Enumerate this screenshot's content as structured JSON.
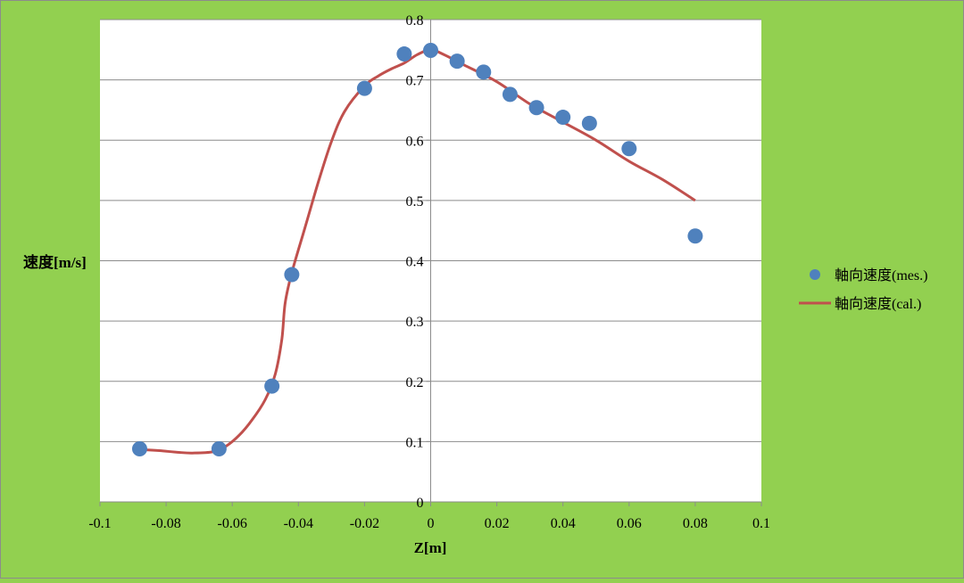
{
  "chart_data": {
    "type": "scatter",
    "title": "",
    "xlabel": "Z[m]",
    "ylabel": "速度[m/s]",
    "xlim": [
      -0.1,
      0.1
    ],
    "ylim": [
      0,
      0.8
    ],
    "x_ticks": [
      "-0.1",
      "-0.08",
      "-0.06",
      "-0.04",
      "-0.02",
      "0",
      "0.02",
      "0.04",
      "0.06",
      "0.08",
      "0.1"
    ],
    "y_ticks": [
      "0",
      "0.1",
      "0.2",
      "0.3",
      "0.4",
      "0.5",
      "0.6",
      "0.7",
      "0.8"
    ],
    "grid": "horizontal",
    "legend_position": "right",
    "series": [
      {
        "name": "軸向速度(mes.)",
        "type": "scatter",
        "color": "#4f81bd",
        "points": [
          [
            -0.088,
            0.088
          ],
          [
            -0.064,
            0.088
          ],
          [
            -0.048,
            0.192
          ],
          [
            -0.042,
            0.377
          ],
          [
            -0.02,
            0.686
          ],
          [
            -0.008,
            0.743
          ],
          [
            0.0,
            0.749
          ],
          [
            0.008,
            0.731
          ],
          [
            0.016,
            0.713
          ],
          [
            0.024,
            0.676
          ],
          [
            0.032,
            0.654
          ],
          [
            0.04,
            0.638
          ],
          [
            0.048,
            0.628
          ],
          [
            0.06,
            0.586
          ],
          [
            0.08,
            0.441
          ]
        ]
      },
      {
        "name": "軸向速度(cal.)",
        "type": "line",
        "color": "#c0504d",
        "points": [
          [
            -0.088,
            0.087
          ],
          [
            -0.082,
            0.085
          ],
          [
            -0.076,
            0.082
          ],
          [
            -0.072,
            0.081
          ],
          [
            -0.066,
            0.083
          ],
          [
            -0.062,
            0.092
          ],
          [
            -0.058,
            0.11
          ],
          [
            -0.054,
            0.136
          ],
          [
            -0.05,
            0.17
          ],
          [
            -0.047,
            0.212
          ],
          [
            -0.045,
            0.27
          ],
          [
            -0.044,
            0.33
          ],
          [
            -0.042,
            0.38
          ],
          [
            -0.038,
            0.455
          ],
          [
            -0.034,
            0.53
          ],
          [
            -0.03,
            0.598
          ],
          [
            -0.026,
            0.648
          ],
          [
            -0.02,
            0.69
          ],
          [
            -0.016,
            0.706
          ],
          [
            -0.012,
            0.718
          ],
          [
            -0.008,
            0.728
          ],
          [
            -0.004,
            0.742
          ],
          [
            0.0,
            0.75
          ],
          [
            0.004,
            0.742
          ],
          [
            0.01,
            0.725
          ],
          [
            0.02,
            0.697
          ],
          [
            0.03,
            0.66
          ],
          [
            0.04,
            0.63
          ],
          [
            0.05,
            0.6
          ],
          [
            0.06,
            0.565
          ],
          [
            0.07,
            0.535
          ],
          [
            0.08,
            0.5
          ]
        ]
      }
    ]
  }
}
